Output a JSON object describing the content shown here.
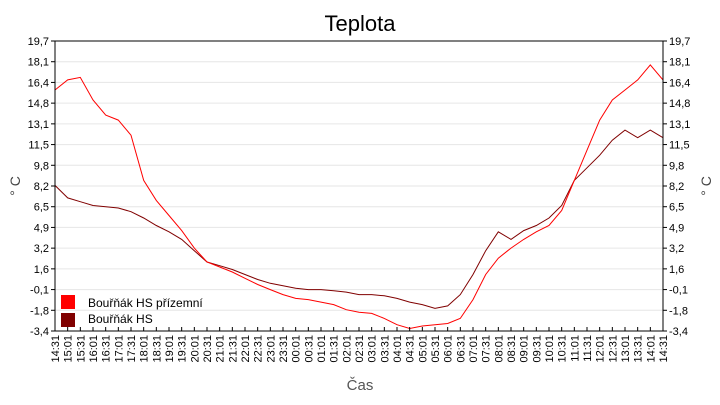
{
  "chart_data": {
    "type": "line",
    "title": "Teplota",
    "xlabel": "Čas",
    "ylabel": "° C",
    "ylim": [
      -3.4,
      19.7
    ],
    "yticks": [
      "19,7",
      "18,1",
      "16,4",
      "14,8",
      "13,1",
      "11,5",
      "9,8",
      "8,2",
      "6,5",
      "4,9",
      "3,2",
      "1,6",
      "-0,1",
      "-1,8",
      "-3,4"
    ],
    "grid": true,
    "legend_placement": "bottom-left",
    "x": [
      "14:31",
      "15:01",
      "15:31",
      "16:01",
      "16:31",
      "17:01",
      "17:31",
      "18:01",
      "18:31",
      "19:01",
      "19:31",
      "20:01",
      "20:31",
      "21:01",
      "21:31",
      "22:01",
      "22:31",
      "23:01",
      "23:31",
      "00:01",
      "00:31",
      "01:01",
      "01:31",
      "02:01",
      "02:31",
      "03:01",
      "03:31",
      "04:01",
      "04:31",
      "05:01",
      "05:31",
      "06:01",
      "06:31",
      "07:01",
      "07:31",
      "08:01",
      "08:31",
      "09:01",
      "09:31",
      "10:01",
      "10:31",
      "11:01",
      "11:31",
      "12:01",
      "12:31",
      "13:01",
      "13:31",
      "14:01",
      "14:31"
    ],
    "series": [
      {
        "name": "Bouřňák HS přízemní",
        "color": "#ff0000",
        "values": [
          15.8,
          16.6,
          16.8,
          15.0,
          13.8,
          13.4,
          12.2,
          8.6,
          7.0,
          5.8,
          4.6,
          3.2,
          2.1,
          1.7,
          1.3,
          0.8,
          0.3,
          -0.1,
          -0.5,
          -0.8,
          -0.9,
          -1.1,
          -1.3,
          -1.7,
          -1.9,
          -2.0,
          -2.4,
          -2.9,
          -3.2,
          -3.0,
          -2.9,
          -2.8,
          -2.4,
          -0.9,
          1.1,
          2.4,
          3.2,
          3.9,
          4.5,
          5.0,
          6.2,
          8.6,
          11.0,
          13.4,
          15.0,
          15.8,
          16.6,
          17.8,
          16.6
        ]
      },
      {
        "name": "Bouřňák HS",
        "color": "#800000",
        "values": [
          8.2,
          7.2,
          6.9,
          6.6,
          6.5,
          6.4,
          6.1,
          5.6,
          5.0,
          4.5,
          3.9,
          3.0,
          2.1,
          1.8,
          1.5,
          1.1,
          0.7,
          0.4,
          0.2,
          0.0,
          -0.1,
          -0.1,
          -0.2,
          -0.3,
          -0.5,
          -0.5,
          -0.6,
          -0.8,
          -1.1,
          -1.3,
          -1.6,
          -1.4,
          -0.5,
          1.1,
          3.0,
          4.5,
          3.9,
          4.6,
          5.0,
          5.6,
          6.6,
          8.6,
          9.6,
          10.6,
          11.8,
          12.6,
          12.0,
          12.6,
          12.0
        ]
      }
    ]
  }
}
